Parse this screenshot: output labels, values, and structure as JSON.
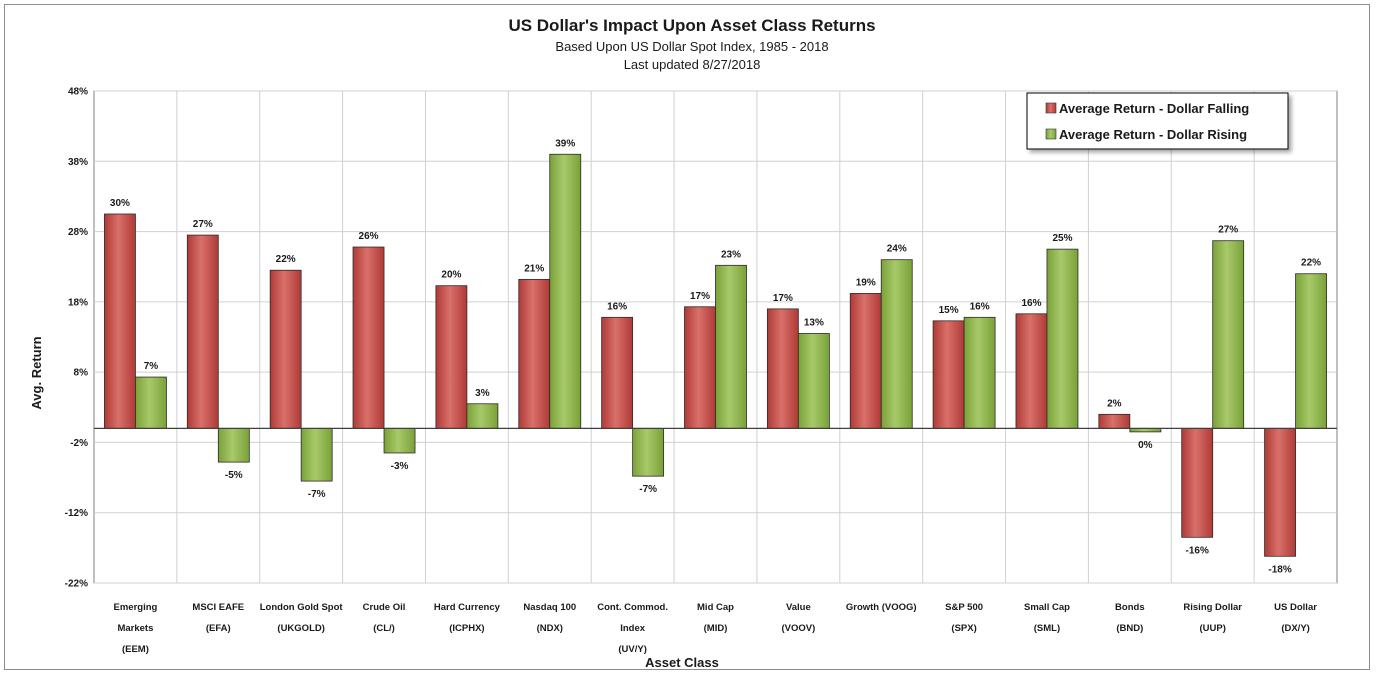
{
  "colors": {
    "falling": "#b03a36",
    "falling_light": "#d9706a",
    "rising": "#7aa238",
    "rising_light": "#a8c96a",
    "grid": "#d0d0d0",
    "axis": "#7f7f7f"
  },
  "chart_data": {
    "type": "bar",
    "title": "US Dollar's Impact Upon Asset Class Returns",
    "subtitle": "Based Upon US Dollar Spot Index, 1985 - 2018",
    "subtitle2": "Last updated 8/27/2018",
    "xlabel": "Asset Class",
    "ylabel": "Avg. Return",
    "ylim": [
      -22,
      48
    ],
    "yticks": [
      48,
      38,
      28,
      18,
      8,
      -2,
      -12,
      -22
    ],
    "ytick_labels": [
      "48%",
      "38%",
      "28%",
      "18%",
      "8%",
      "-2%",
      "-12%",
      "-22%"
    ],
    "grid": true,
    "legend_position": "top-right",
    "categories": [
      [
        "Emerging",
        "Markets",
        "(EEM)"
      ],
      [
        "MSCI EAFE",
        "(EFA)"
      ],
      [
        "London Gold Spot",
        "(UKGOLD)"
      ],
      [
        "Crude Oil",
        "(CL/)"
      ],
      [
        "Hard Currency",
        "(ICPHX)"
      ],
      [
        "Nasdaq 100",
        "(NDX)"
      ],
      [
        "Cont. Commod.",
        "Index",
        "(UV/Y)"
      ],
      [
        "Mid Cap",
        "(MID)"
      ],
      [
        "Value",
        "(VOOV)"
      ],
      [
        "Growth (VOOG)"
      ],
      [
        "S&P 500",
        "(SPX)"
      ],
      [
        "Small Cap",
        "(SML)"
      ],
      [
        "Bonds",
        "(BND)"
      ],
      [
        "Rising Dollar",
        "(UUP)"
      ],
      [
        "US Dollar",
        "(DX/Y)"
      ]
    ],
    "series": [
      {
        "name": "Average Return - Dollar Falling",
        "values": [
          30.5,
          27.5,
          22.5,
          25.8,
          20.3,
          21.2,
          15.8,
          17.3,
          17.0,
          19.2,
          15.3,
          16.3,
          2.0,
          -15.5,
          -18.2
        ],
        "labels": [
          "30%",
          "27%",
          "22%",
          "26%",
          "20%",
          "21%",
          "16%",
          "17%",
          "17%",
          "19%",
          "15%",
          "16%",
          "2%",
          "-16%",
          "-18%"
        ]
      },
      {
        "name": "Average Return - Dollar Rising",
        "values": [
          7.3,
          -4.8,
          -7.5,
          -3.5,
          3.5,
          39.0,
          -6.8,
          23.2,
          13.5,
          24.0,
          15.8,
          25.5,
          -0.5,
          26.7,
          22.0
        ],
        "labels": [
          "7%",
          "-5%",
          "-7%",
          "-3%",
          "3%",
          "39%",
          "-7%",
          "23%",
          "13%",
          "24%",
          "16%",
          "25%",
          "0%",
          "27%",
          "22%"
        ]
      }
    ]
  }
}
